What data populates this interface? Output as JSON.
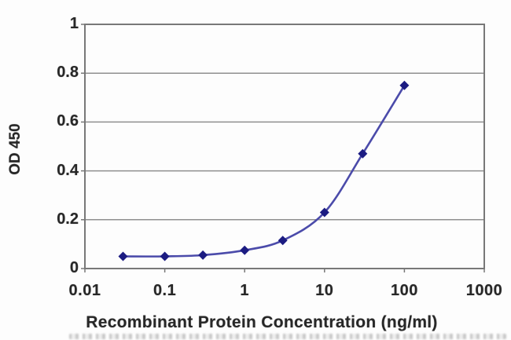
{
  "chart_data": {
    "type": "line",
    "title": "",
    "xlabel": "Recombinant Protein Concentration (ng/ml)",
    "ylabel": "OD 450",
    "x_scale": "log",
    "xlim": [
      0.01,
      1000
    ],
    "ylim": [
      0,
      1
    ],
    "x_ticks": [
      0.01,
      0.1,
      1,
      10,
      100,
      1000
    ],
    "x_tick_labels": [
      "0.01",
      "0.1",
      "1",
      "10",
      "100",
      "1000"
    ],
    "y_ticks": [
      0,
      0.2,
      0.4,
      0.6,
      0.8,
      1
    ],
    "y_tick_labels": [
      "0",
      "0.2",
      "0.4",
      "0.6",
      "0.8",
      "1"
    ],
    "grid": "horizontal",
    "legend": "none",
    "series": [
      {
        "marker": "diamond",
        "x": [
          0.03,
          0.1,
          0.3,
          1,
          3,
          10,
          30,
          100
        ],
        "y": [
          0.05,
          0.05,
          0.055,
          0.075,
          0.115,
          0.23,
          0.47,
          0.75
        ]
      }
    ],
    "colors": {
      "line": "#4b4baa",
      "marker": "#1c1c82",
      "grid": "#8f8f8f",
      "border": "#787878",
      "text": "#272727"
    }
  }
}
